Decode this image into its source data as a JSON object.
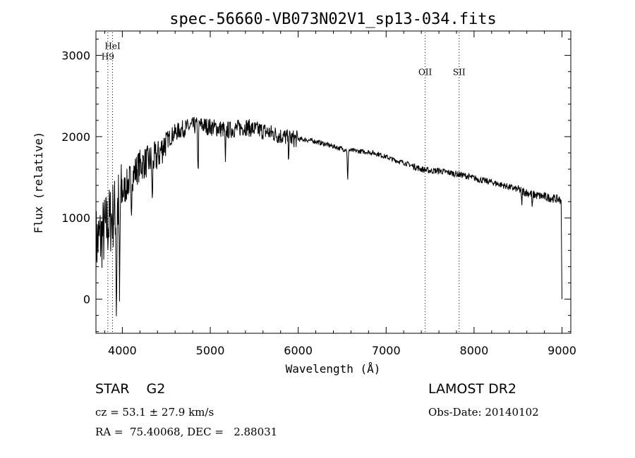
{
  "chart_data": {
    "type": "line",
    "title": "spec-56660-VB073N02V1_sp13-034.fits",
    "xlabel": "Wavelength (Å)",
    "ylabel": "Flux (relative)",
    "xlim": [
      3700,
      9100
    ],
    "ylim": [
      -420,
      3300
    ],
    "x_ticks": [
      4000,
      5000,
      6000,
      7000,
      8000,
      9000
    ],
    "y_ticks": [
      0,
      1000,
      2000,
      3000
    ],
    "x_tick_labels": [
      "4000",
      "5000",
      "6000",
      "7000",
      "8000",
      "9000"
    ],
    "y_tick_labels": [
      "0",
      "1000",
      "2000",
      "3000"
    ],
    "grid": false,
    "line_color": "#000000",
    "continuum": {
      "x": [
        3700,
        3750,
        3800,
        3850,
        3900,
        3950,
        4000,
        4100,
        4200,
        4300,
        4400,
        4500,
        4600,
        4700,
        4800,
        4900,
        5000,
        5100,
        5200,
        5300,
        5400,
        5500,
        5600,
        5700,
        5800,
        5900,
        6000,
        6100,
        6200,
        6300,
        6400,
        6500,
        6600,
        6700,
        6800,
        6900,
        7000,
        7100,
        7200,
        7300,
        7400,
        7500,
        7600,
        7700,
        7800,
        7900,
        8000,
        8100,
        8200,
        8300,
        8400,
        8500,
        8600,
        8700,
        8800,
        8900,
        8990
      ],
      "y": [
        700,
        750,
        850,
        950,
        1050,
        1150,
        1300,
        1500,
        1650,
        1700,
        1750,
        1950,
        2050,
        2100,
        2130,
        2140,
        2120,
        2100,
        2080,
        2100,
        2120,
        2090,
        2070,
        2040,
        2010,
        1980,
        1970,
        1960,
        1940,
        1910,
        1880,
        1850,
        1830,
        1820,
        1810,
        1790,
        1750,
        1710,
        1680,
        1640,
        1600,
        1580,
        1580,
        1560,
        1540,
        1520,
        1490,
        1460,
        1440,
        1410,
        1380,
        1350,
        1310,
        1280,
        1260,
        1240,
        1220
      ]
    },
    "absorption_features": [
      {
        "x": 3933,
        "y": -220
      },
      {
        "x": 3968,
        "y": -150
      },
      {
        "x": 4101,
        "y": 950
      },
      {
        "x": 4340,
        "y": 1150
      },
      {
        "x": 4861,
        "y": 1500
      },
      {
        "x": 5172,
        "y": 1640
      },
      {
        "x": 5890,
        "y": 1780
      },
      {
        "x": 6563,
        "y": 1420
      },
      {
        "x": 8542,
        "y": 1150
      },
      {
        "x": 8662,
        "y": 1100
      }
    ],
    "end_drop": {
      "x": [
        8990,
        9000
      ],
      "y": [
        1220,
        0
      ]
    },
    "noise": {
      "blue_amplitude": 900,
      "mid_amplitude": 220,
      "red_amplitude": 60
    },
    "reference_lines": [
      {
        "label": "HeI",
        "x": 3889,
        "label_y": 3080
      },
      {
        "label": "H9",
        "x": 3835,
        "label_y": 2950
      },
      {
        "label": "OII",
        "x": 7444,
        "label_y": 2760
      },
      {
        "label": "SII",
        "x": 7830,
        "label_y": 2760
      }
    ]
  },
  "info": {
    "class_text": "STAR    G2",
    "survey": "LAMOST DR2",
    "cz": "cz = 53.1 ± 27.9 km/s",
    "obs_date": "Obs-Date: 20140102",
    "coords": "RA =  75.40068, DEC =   2.88031"
  }
}
